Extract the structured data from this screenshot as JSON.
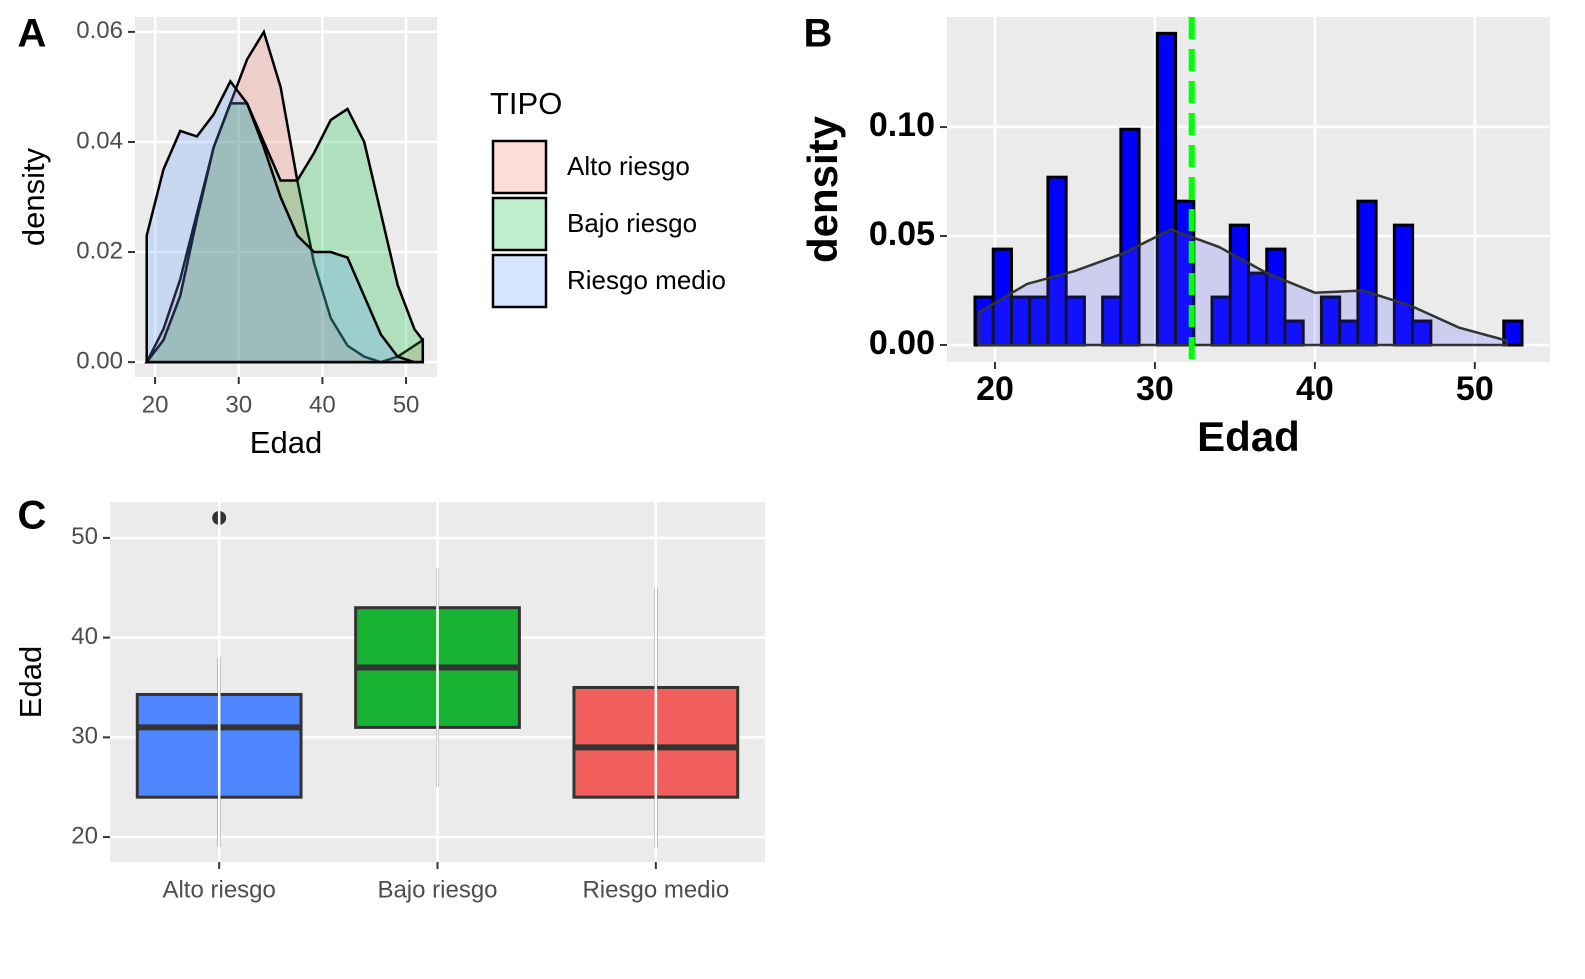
{
  "chart_data": [
    {
      "type": "density",
      "panel_label": "A",
      "x_label": "Edad",
      "y_label": "density",
      "xlim": [
        17.6,
        53.7
      ],
      "ylim": [
        -0.0027,
        0.0627
      ],
      "xticks": [
        20,
        30,
        40,
        50
      ],
      "yticks": [
        {
          "value": 0,
          "label": "0.00"
        },
        {
          "value": 0.02,
          "label": "0.02"
        },
        {
          "value": 0.04,
          "label": "0.04"
        },
        {
          "value": 0.06,
          "label": "0.06"
        }
      ],
      "grid": true,
      "legend_title": "TIPO",
      "x": [
        19,
        21,
        23,
        25,
        27,
        29,
        31,
        33,
        35,
        37,
        39,
        41,
        43,
        45,
        47,
        49,
        51,
        52
      ],
      "series": [
        {
          "name": "Alto riesgo",
          "color": "#F8766D",
          "values": [
            0.0,
            0.006,
            0.015,
            0.027,
            0.039,
            0.047,
            0.055,
            0.06,
            0.05,
            0.033,
            0.018,
            0.008,
            0.003,
            0.001,
            0.0,
            0.001,
            0.003,
            0.004
          ]
        },
        {
          "name": "Bajo riesgo",
          "color": "#00BA38",
          "values": [
            0.0,
            0.004,
            0.012,
            0.026,
            0.039,
            0.047,
            0.047,
            0.04,
            0.033,
            0.033,
            0.038,
            0.044,
            0.046,
            0.04,
            0.027,
            0.014,
            0.006,
            0.004
          ]
        },
        {
          "name": "Riesgo medio",
          "color": "#619CFF",
          "values": [
            0.023,
            0.035,
            0.042,
            0.041,
            0.045,
            0.051,
            0.047,
            0.039,
            0.03,
            0.023,
            0.02,
            0.02,
            0.019,
            0.012,
            0.005,
            0.001,
            0.0,
            0.0
          ]
        }
      ]
    },
    {
      "type": "histogram",
      "panel_label": "B",
      "x_label": "Edad",
      "y_label": "density",
      "xlim": [
        17.0,
        54.7
      ],
      "ylim": [
        -0.0078,
        0.1505
      ],
      "xticks": [
        20,
        30,
        40,
        50
      ],
      "yticks": [
        {
          "value": 0,
          "label": "0.00"
        },
        {
          "value": 0.05,
          "label": "0.05"
        },
        {
          "value": 0.1,
          "label": "0.10"
        }
      ],
      "grid": true,
      "color": "#0000FF",
      "bins": [
        18.75,
        19.89,
        21.03,
        22.17,
        23.31,
        24.45,
        25.59,
        26.73,
        27.87,
        29.01,
        30.15,
        31.29,
        32.43,
        33.57,
        34.71,
        35.85,
        36.99,
        38.13,
        39.27,
        40.41,
        41.55,
        42.69,
        43.83,
        44.97,
        46.11,
        47.25,
        48.39,
        49.53,
        50.67,
        51.81,
        52.95
      ],
      "values": [
        0.022,
        0.044,
        0.022,
        0.022,
        0.077,
        0.022,
        0,
        0.022,
        0.099,
        0,
        0.143,
        0.066,
        0,
        0.022,
        0.055,
        0.033,
        0.044,
        0.011,
        0,
        0.022,
        0.011,
        0.066,
        0,
        0.055,
        0.011,
        0,
        0,
        0,
        0,
        0.011
      ],
      "density": {
        "color": "#5555FF",
        "x": [
          19,
          22,
          25,
          28,
          31,
          34,
          37,
          40,
          43,
          46,
          49,
          52
        ],
        "values": [
          0.015,
          0.028,
          0.034,
          0.042,
          0.053,
          0.045,
          0.033,
          0.024,
          0.025,
          0.018,
          0.008,
          0.002
        ]
      },
      "mean_line": {
        "value": 32.3,
        "color": "#00FF00"
      }
    },
    {
      "type": "boxplot",
      "panel_label": "C",
      "y_label": "Edad",
      "ylim": [
        17.5,
        53.6
      ],
      "yticks": [
        20,
        30,
        40,
        50
      ],
      "grid": true,
      "categories": [
        "Alto riesgo",
        "Bajo riesgo",
        "Riesgo medio"
      ],
      "boxes": [
        {
          "color": "#4F86FF",
          "min": 19,
          "q1": 24,
          "median": 31,
          "q3": 34.3,
          "max": 38,
          "outliers": [
            52
          ]
        },
        {
          "color": "#18B232",
          "min": 25,
          "q1": 31,
          "median": 37,
          "q3": 43,
          "max": 47,
          "outliers": []
        },
        {
          "color": "#F15F5C",
          "min": 19,
          "q1": 24,
          "median": 29,
          "q3": 35,
          "max": 45,
          "outliers": []
        }
      ]
    }
  ]
}
